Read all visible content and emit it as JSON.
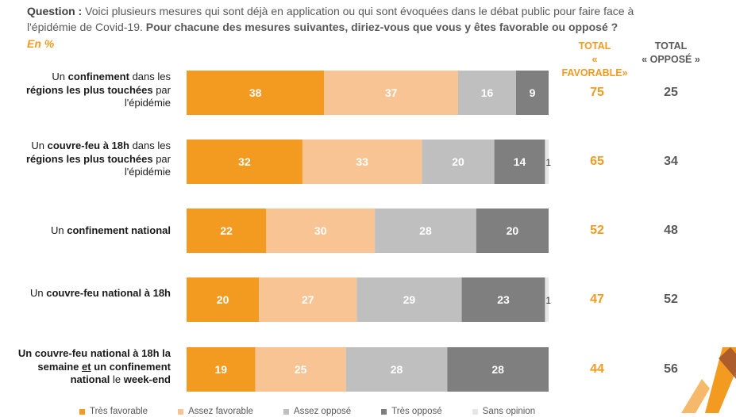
{
  "question": {
    "label": "Question :",
    "text": "Voici plusieurs mesures qui sont déjà en application ou qui sont évoquées dans le débat public pour faire face à l'épidémie de Covid-19.",
    "bold_text": "Pour chacune des mesures suivantes, diriez-vous que vous y êtes favorable ou opposé ?"
  },
  "unit_note": "En %",
  "column_headers": {
    "favorable": [
      "TOTAL",
      "« FAVORABLE»"
    ],
    "oppose": [
      "TOTAL",
      "« OPPOSÉ »"
    ]
  },
  "rows": [
    {
      "label_parts": [
        {
          "t": "Un ",
          "b": false
        },
        {
          "t": "confinement",
          "b": true
        },
        {
          "t": " dans les ",
          "b": false
        },
        {
          "t": "régions les plus touchées",
          "b": true
        },
        {
          "t": " par l'épidémie",
          "b": false
        }
      ],
      "total_favorable": "75",
      "total_oppose": "25"
    },
    {
      "label_parts": [
        {
          "t": "Un ",
          "b": false
        },
        {
          "t": "couvre-feu à 18h",
          "b": true
        },
        {
          "t": " dans les ",
          "b": false
        },
        {
          "t": "régions les plus touchées",
          "b": true
        },
        {
          "t": " par l'épidémie",
          "b": false
        }
      ],
      "total_favorable": "65",
      "total_oppose": "34"
    },
    {
      "label_parts": [
        {
          "t": "Un ",
          "b": false
        },
        {
          "t": "confinement national",
          "b": true
        }
      ],
      "total_favorable": "52",
      "total_oppose": "48"
    },
    {
      "label_parts": [
        {
          "t": "Un ",
          "b": false
        },
        {
          "t": "couvre-feu national à 18h",
          "b": true
        }
      ],
      "total_favorable": "47",
      "total_oppose": "52"
    },
    {
      "label_parts": [
        {
          "t": "Un couvre-feu national à 18h",
          "b": true
        },
        {
          "t": " la semaine ",
          "b": true
        },
        {
          "t": "et",
          "b": true,
          "u": true
        },
        {
          "t": " un ",
          "b": true
        },
        {
          "t": "confinement",
          "b": true
        },
        {
          "t": " national",
          "b": true
        },
        {
          "t": " le ",
          "b": false
        },
        {
          "t": "week-end",
          "b": true
        }
      ],
      "total_favorable": "44",
      "total_oppose": "56"
    }
  ],
  "chart_data": {
    "type": "bar",
    "orientation": "horizontal",
    "stacked": true,
    "unit": "%",
    "categories": [
      "Un confinement dans les régions les plus touchées par l'épidémie",
      "Un couvre-feu à 18h dans les régions les plus touchées par l'épidémie",
      "Un confinement national",
      "Un couvre-feu national à 18h",
      "Un couvre-feu national à 18h la semaine et un confinement national le week-end"
    ],
    "series": [
      {
        "name": "Très favorable",
        "color": "#f39a21",
        "values": [
          38,
          32,
          22,
          20,
          19
        ]
      },
      {
        "name": "Assez favorable",
        "color": "#f8c494",
        "values": [
          37,
          33,
          30,
          27,
          25
        ]
      },
      {
        "name": "Assez opposé",
        "color": "#bfbfbf",
        "values": [
          16,
          20,
          28,
          29,
          28
        ]
      },
      {
        "name": "Très opposé",
        "color": "#7f7f7f",
        "values": [
          9,
          14,
          20,
          23,
          28
        ]
      },
      {
        "name": "Sans opinion",
        "color": "#e6e6e6",
        "values": [
          0,
          1,
          0,
          1,
          0
        ]
      }
    ],
    "xlim": [
      0,
      100
    ],
    "legend_position": "bottom"
  },
  "colors": {
    "accent": "#f39a21",
    "text_dark": "#333333",
    "text_grey": "#595959"
  },
  "logo": "brand-logo"
}
